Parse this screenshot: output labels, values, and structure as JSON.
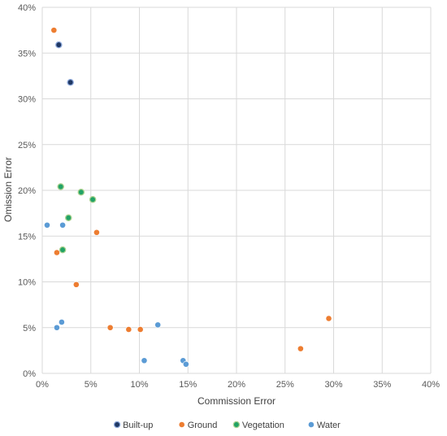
{
  "chart_data": {
    "type": "scatter",
    "xlabel": "Commission Error",
    "ylabel": "Omission Error",
    "xlim": [
      0,
      40
    ],
    "ylim": [
      0,
      40
    ],
    "x_ticks": [
      "0%",
      "5%",
      "10%",
      "15%",
      "20%",
      "25%",
      "30%",
      "35%",
      "40%"
    ],
    "y_ticks": [
      "0%",
      "5%",
      "10%",
      "15%",
      "20%",
      "25%",
      "30%",
      "35%",
      "40%"
    ],
    "grid": true,
    "legend_position": "bottom",
    "series": [
      {
        "name": "Built-up",
        "color": "#1f3864",
        "points": [
          [
            1.7,
            35.9
          ],
          [
            2.9,
            31.8
          ]
        ]
      },
      {
        "name": "Ground",
        "color": "#ed7d31",
        "points": [
          [
            1.2,
            37.5
          ],
          [
            1.5,
            13.2
          ],
          [
            3.5,
            9.7
          ],
          [
            5.6,
            15.4
          ],
          [
            7.0,
            5.0
          ],
          [
            8.9,
            4.8
          ],
          [
            10.1,
            4.8
          ],
          [
            26.6,
            2.7
          ],
          [
            29.5,
            6.0
          ]
        ]
      },
      {
        "name": "Vegetation",
        "color": "#21a366",
        "points": [
          [
            1.9,
            20.4
          ],
          [
            4.0,
            19.8
          ],
          [
            5.2,
            19.0
          ],
          [
            2.7,
            17.0
          ],
          [
            2.1,
            13.5
          ]
        ]
      },
      {
        "name": "Water",
        "color": "#5b9bd5",
        "points": [
          [
            0.5,
            16.2
          ],
          [
            2.1,
            16.2
          ],
          [
            1.5,
            5.0
          ],
          [
            2.0,
            5.6
          ],
          [
            10.5,
            1.4
          ],
          [
            11.9,
            5.3
          ],
          [
            14.5,
            1.4
          ],
          [
            14.8,
            1.0
          ]
        ]
      }
    ]
  }
}
